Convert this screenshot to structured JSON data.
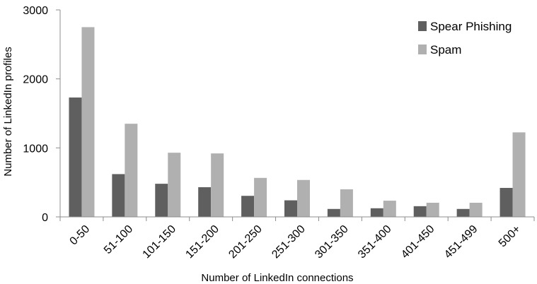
{
  "chart_data": {
    "type": "bar",
    "title": "",
    "xlabel": "Number of LinkedIn connections",
    "ylabel": "Number of LinkedIn profiles",
    "ylim": [
      0,
      3000
    ],
    "yticks": [
      0,
      1000,
      2000,
      3000
    ],
    "grid": false,
    "legend_position": "top-right",
    "categories": [
      "0-50",
      "51-100",
      "101-150",
      "151-200",
      "201-250",
      "251-300",
      "301-350",
      "351-400",
      "401-450",
      "451-499",
      "500+"
    ],
    "series": [
      {
        "name": "Spear Phishing",
        "color": "#5f5f5f",
        "values": [
          1730,
          620,
          480,
          430,
          305,
          240,
          115,
          125,
          155,
          115,
          420
        ]
      },
      {
        "name": "Spam",
        "color": "#b0b0b0",
        "values": [
          2750,
          1350,
          930,
          920,
          565,
          535,
          400,
          235,
          205,
          205,
          1225
        ]
      }
    ]
  }
}
